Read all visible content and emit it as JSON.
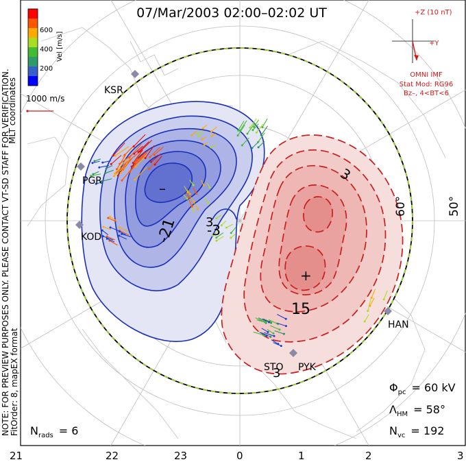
{
  "title": "07/Mar/2003 02:00–02:02 UT",
  "side_note": {
    "line1": "NOTE: FOR PREVIEW PURPOSES ONLY. PLEASE CONTACT VT-SD STAFF FOR VERIFICATION.",
    "line2": "FitOrder: 8, mapEX format",
    "coords": "MLT coordinates"
  },
  "colorbar": {
    "label": "Vel [m/s]",
    "ticks": [
      "600",
      "400",
      "200"
    ],
    "colors": [
      "#0000ff",
      "#3a5fc8",
      "#2f9a6a",
      "#44bb33",
      "#aadd22",
      "#ffaa00",
      "#ff5500",
      "#ff0000"
    ]
  },
  "scale_vector": "1000 m/s",
  "imf": {
    "z_label": "+Z (10 nT)",
    "y_label": "+Y",
    "source": "OMNI IMF",
    "stat_mod": "Stat Mod: RG96",
    "bz": "Bz–, 4<BT<6"
  },
  "latitude_labels": [
    "60°",
    "50°"
  ],
  "contour_labels": [
    "-21",
    "-3",
    "3",
    "15",
    "3",
    "3"
  ],
  "extrema": {
    "min_marker": "–",
    "max_marker": "+"
  },
  "stations": [
    "KSR",
    "PGR",
    "KOD",
    "HAN",
    "STO",
    "PYK"
  ],
  "stats": {
    "phi_pc": "= 60 kV",
    "lambda_hm": "= 58°",
    "n_vc": "= 192",
    "n_rads": "= 6"
  },
  "stat_symbols": {
    "phi": "Φ",
    "phi_sub": "pc",
    "lambda": "Λ",
    "lambda_sub": "HM",
    "n": "N",
    "nvc_sub": "vc",
    "nrads_sub": "rads"
  },
  "mlt_ticks": [
    "21",
    "22",
    "23",
    "0",
    "1",
    "2",
    "3"
  ],
  "colors": {
    "negative": "#1a2fb8",
    "positive": "#c81e1e",
    "boundary_dash": "#9acd32"
  }
}
